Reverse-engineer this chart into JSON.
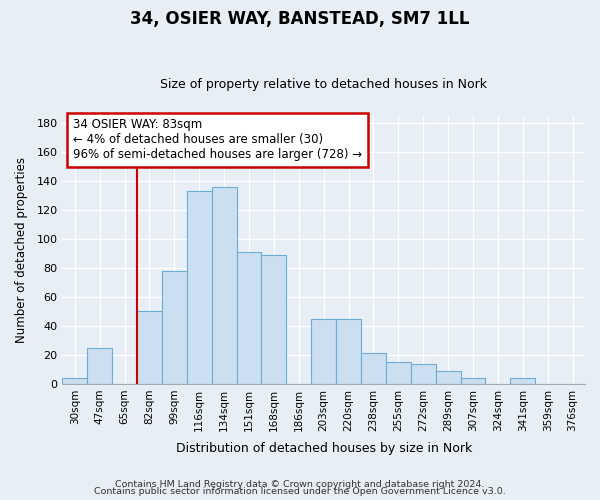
{
  "title": "34, OSIER WAY, BANSTEAD, SM7 1LL",
  "subtitle": "Size of property relative to detached houses in Nork",
  "xlabel": "Distribution of detached houses by size in Nork",
  "ylabel": "Number of detached properties",
  "footer_lines": [
    "Contains HM Land Registry data © Crown copyright and database right 2024.",
    "Contains public sector information licensed under the Open Government Licence v3.0."
  ],
  "bar_labels": [
    "30sqm",
    "47sqm",
    "65sqm",
    "82sqm",
    "99sqm",
    "116sqm",
    "134sqm",
    "151sqm",
    "168sqm",
    "186sqm",
    "203sqm",
    "220sqm",
    "238sqm",
    "255sqm",
    "272sqm",
    "289sqm",
    "307sqm",
    "324sqm",
    "341sqm",
    "359sqm",
    "376sqm"
  ],
  "bar_values": [
    4,
    25,
    0,
    50,
    78,
    133,
    136,
    91,
    89,
    0,
    45,
    45,
    21,
    15,
    14,
    9,
    4,
    0,
    4,
    0,
    0
  ],
  "bar_color": "#ccdff0",
  "bar_edgecolor": "#6aaed6",
  "vline_x_idx": 3,
  "vline_color": "#cc0000",
  "annotation_title": "34 OSIER WAY: 83sqm",
  "annotation_line1": "← 4% of detached houses are smaller (30)",
  "annotation_line2": "96% of semi-detached houses are larger (728) →",
  "annotation_box_edgecolor": "#cc0000",
  "ylim": [
    0,
    185
  ],
  "yticks": [
    0,
    20,
    40,
    60,
    80,
    100,
    120,
    140,
    160,
    180
  ],
  "bg_color": "#e8eef5",
  "plot_bg_color": "#e8eef5",
  "grid_color": "#ffffff",
  "title_fontsize": 12,
  "subtitle_fontsize": 9
}
